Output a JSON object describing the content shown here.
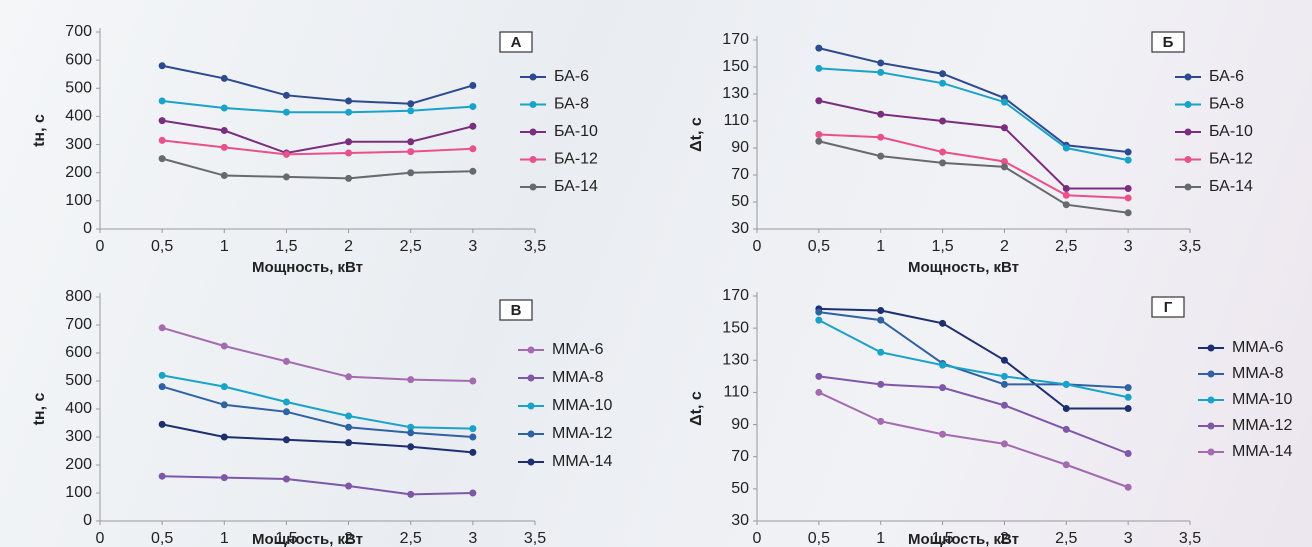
{
  "chart_data": [
    {
      "type": "line",
      "panel_label": "А",
      "xlabel": "Мощность, кВт",
      "ylabel": "tн, с",
      "x": [
        0.5,
        1,
        1.5,
        2,
        2.5,
        3
      ],
      "xlim": [
        0,
        3.5
      ],
      "xticks": [
        0,
        {
          "value": 0.5,
          "label": "0,5"
        },
        1,
        {
          "value": 1.5,
          "label": "1,5"
        },
        2,
        {
          "value": 2.5,
          "label": "2,5"
        },
        3,
        {
          "value": 3.5,
          "label": "3,5"
        }
      ],
      "ylim": [
        0,
        700
      ],
      "yticks": [
        0,
        100,
        200,
        300,
        400,
        500,
        600,
        700
      ],
      "series": [
        {
          "name": "БА-6",
          "color": "#2e4a8e",
          "values": [
            580,
            535,
            475,
            455,
            445,
            510
          ]
        },
        {
          "name": "БА-8",
          "color": "#1aa3c8",
          "values": [
            455,
            430,
            415,
            415,
            420,
            435
          ]
        },
        {
          "name": "БА-10",
          "color": "#7b2d7e",
          "values": [
            385,
            350,
            270,
            310,
            310,
            365
          ]
        },
        {
          "name": "БА-12",
          "color": "#e9508c",
          "values": [
            315,
            290,
            265,
            270,
            275,
            285
          ]
        },
        {
          "name": "БА-14",
          "color": "#666a6e",
          "values": [
            250,
            190,
            185,
            180,
            200,
            205
          ]
        }
      ]
    },
    {
      "type": "line",
      "panel_label": "Б",
      "xlabel": "Мощность, кВт",
      "ylabel": "Δt, с",
      "x": [
        0.5,
        1,
        1.5,
        2,
        2.5,
        3
      ],
      "xlim": [
        0,
        3.5
      ],
      "xticks": [
        0,
        {
          "value": 0.5,
          "label": "0,5"
        },
        1,
        {
          "value": 1.5,
          "label": "1,5"
        },
        2,
        {
          "value": 2.5,
          "label": "2,5"
        },
        3,
        {
          "value": 3.5,
          "label": "3,5"
        }
      ],
      "ylim": [
        30,
        170
      ],
      "yticks": [
        30,
        50,
        70,
        90,
        110,
        130,
        150,
        170
      ],
      "series": [
        {
          "name": "БА-6",
          "color": "#2e4a8e",
          "values": [
            164,
            153,
            145,
            127,
            92,
            87
          ]
        },
        {
          "name": "БА-8",
          "color": "#1aa3c8",
          "values": [
            149,
            146,
            138,
            124,
            90,
            81
          ]
        },
        {
          "name": "БА-10",
          "color": "#7b2d7e",
          "values": [
            125,
            115,
            110,
            105,
            60,
            60
          ]
        },
        {
          "name": "БА-12",
          "color": "#e9508c",
          "values": [
            100,
            98,
            87,
            80,
            55,
            53
          ]
        },
        {
          "name": "БА-14",
          "color": "#666a6e",
          "values": [
            95,
            84,
            79,
            76,
            48,
            42
          ]
        }
      ]
    },
    {
      "type": "line",
      "panel_label": "В",
      "xlabel": "Мощность, кВт",
      "ylabel": "tн, с",
      "x": [
        0.5,
        1,
        1.5,
        2,
        2.5,
        3
      ],
      "xlim": [
        0,
        3.5
      ],
      "xticks": [
        0,
        {
          "value": 0.5,
          "label": "0,5"
        },
        1,
        {
          "value": 1.5,
          "label": "1,5"
        },
        2,
        {
          "value": 2.5,
          "label": "2,5"
        },
        3,
        {
          "value": 3.5,
          "label": "3,5"
        }
      ],
      "ylim": [
        0,
        800
      ],
      "yticks": [
        0,
        100,
        200,
        300,
        400,
        500,
        600,
        700,
        800
      ],
      "series": [
        {
          "name": "ММА-6",
          "color": "#a46bb0",
          "values": [
            690,
            625,
            570,
            515,
            505,
            500
          ]
        },
        {
          "name": "ММА-8",
          "color": "#7e57a8",
          "values": [
            160,
            155,
            150,
            125,
            95,
            100
          ]
        },
        {
          "name": "ММА-10",
          "color": "#1aa3c8",
          "values": [
            520,
            480,
            425,
            375,
            335,
            330
          ]
        },
        {
          "name": "ММА-12",
          "color": "#2f62a3",
          "values": [
            480,
            415,
            390,
            335,
            315,
            300
          ]
        },
        {
          "name": "ММА-14",
          "color": "#1d2f6e",
          "values": [
            345,
            300,
            290,
            280,
            265,
            245
          ]
        }
      ]
    },
    {
      "type": "line",
      "panel_label": "Г",
      "xlabel": "Мощность, кВт",
      "ylabel": "Δt, с",
      "x": [
        0.5,
        1,
        1.5,
        2,
        2.5,
        3
      ],
      "xlim": [
        0,
        3.5
      ],
      "xticks": [
        0,
        {
          "value": 0.5,
          "label": "0,5"
        },
        1,
        {
          "value": 1.5,
          "label": "1,5"
        },
        2,
        {
          "value": 2.5,
          "label": "2,5"
        },
        3,
        {
          "value": 3.5,
          "label": "3,5"
        }
      ],
      "ylim": [
        30,
        170
      ],
      "yticks": [
        30,
        50,
        70,
        90,
        110,
        130,
        150,
        170
      ],
      "series": [
        {
          "name": "ММА-6",
          "color": "#1d2f6e",
          "values": [
            162,
            161,
            153,
            130,
            100,
            100
          ]
        },
        {
          "name": "ММА-8",
          "color": "#2f62a3",
          "values": [
            160,
            155,
            128,
            115,
            115,
            113
          ]
        },
        {
          "name": "ММА-10",
          "color": "#1aa3c8",
          "values": [
            155,
            135,
            127,
            120,
            115,
            107
          ]
        },
        {
          "name": "ММА-12",
          "color": "#7e57a8",
          "values": [
            120,
            115,
            113,
            102,
            87,
            72
          ]
        },
        {
          "name": "ММА-14",
          "color": "#a46bb0",
          "values": [
            110,
            92,
            84,
            78,
            65,
            51
          ]
        }
      ]
    }
  ]
}
